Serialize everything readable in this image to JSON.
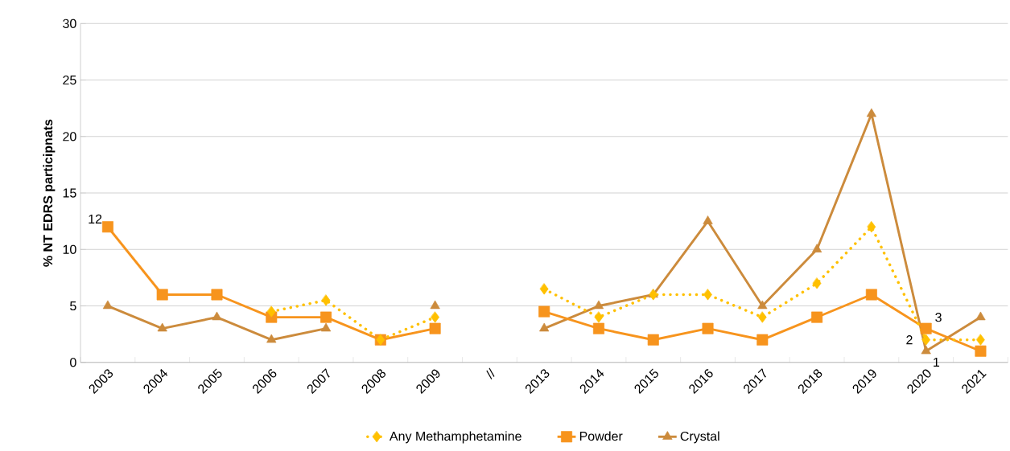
{
  "chart_data": {
    "type": "line",
    "ylabel": "% NT EDRS participnats",
    "categories": [
      "2003",
      "2004",
      "2005",
      "2006",
      "2007",
      "2008",
      "2009",
      "//",
      "2013",
      "2014",
      "2015",
      "2016",
      "2017",
      "2018",
      "2019",
      "2020",
      "2021"
    ],
    "series": [
      {
        "name": "Any Methamphetamine",
        "color": "#ffc000",
        "marker": "diamond",
        "line_style": "dotted",
        "values": [
          null,
          null,
          null,
          4.5,
          5.5,
          2,
          4,
          null,
          6.5,
          4,
          6,
          6,
          4,
          7,
          12,
          2,
          2
        ],
        "value_labels": [
          null,
          null,
          null,
          null,
          null,
          null,
          null,
          null,
          null,
          null,
          null,
          null,
          null,
          null,
          null,
          "2",
          null
        ]
      },
      {
        "name": "Powder",
        "color": "#f7941d",
        "marker": "square",
        "line_style": "solid",
        "values": [
          12,
          6,
          6,
          4,
          4,
          2,
          3,
          null,
          4.5,
          3,
          2,
          3,
          2,
          4,
          6,
          3,
          1
        ],
        "value_labels": [
          "12",
          null,
          null,
          null,
          null,
          null,
          null,
          null,
          null,
          null,
          null,
          null,
          null,
          null,
          null,
          "3",
          null
        ]
      },
      {
        "name": "Crystal",
        "color": "#cc8b3c",
        "marker": "triangle",
        "line_style": "solid",
        "values": [
          5,
          3,
          4,
          2,
          3,
          null,
          5,
          null,
          3,
          5,
          6,
          12.5,
          5,
          10,
          22,
          1,
          4
        ],
        "value_labels": [
          null,
          null,
          null,
          null,
          null,
          null,
          null,
          null,
          null,
          null,
          null,
          null,
          null,
          null,
          null,
          "1",
          null
        ]
      }
    ],
    "ylim": [
      0,
      30
    ],
    "yticks": [
      0,
      5,
      10,
      15,
      20,
      25,
      30
    ],
    "grid": "y",
    "legend": "bottom"
  }
}
